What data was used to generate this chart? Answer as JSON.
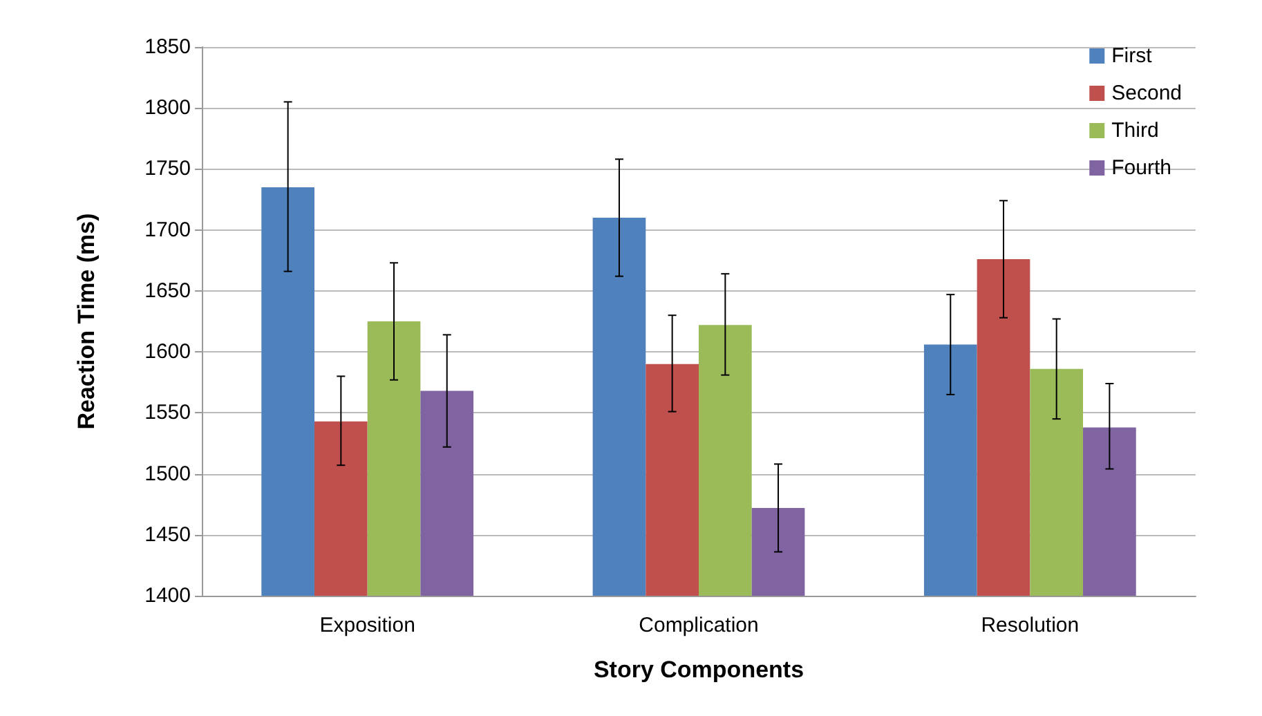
{
  "chart_data": {
    "type": "bar",
    "xlabel": "Story Components",
    "ylabel": "Reaction Time (ms)",
    "categories": [
      "Exposition",
      "Complication",
      "Resolution"
    ],
    "series": [
      {
        "name": "First",
        "color": "#4f81bd",
        "values": [
          1735,
          1710,
          1606
        ],
        "errors": [
          [
            1666,
            1805
          ],
          [
            1662,
            1758
          ],
          [
            1565,
            1647
          ]
        ]
      },
      {
        "name": "Second",
        "color": "#c0504d",
        "values": [
          1543,
          1590,
          1676
        ],
        "errors": [
          [
            1507,
            1580
          ],
          [
            1551,
            1630
          ],
          [
            1628,
            1724
          ]
        ]
      },
      {
        "name": "Third",
        "color": "#9bbb59",
        "values": [
          1625,
          1622,
          1586
        ],
        "errors": [
          [
            1577,
            1673
          ],
          [
            1581,
            1664
          ],
          [
            1545,
            1627
          ]
        ]
      },
      {
        "name": "Fourth",
        "color": "#8064a2",
        "values": [
          1568,
          1472,
          1538
        ],
        "errors": [
          [
            1522,
            1614
          ],
          [
            1436,
            1508
          ],
          [
            1504,
            1574
          ]
        ]
      }
    ],
    "ylim": [
      1400,
      1850
    ],
    "yticks": [
      1400,
      1450,
      1500,
      1550,
      1600,
      1650,
      1700,
      1750,
      1800,
      1850
    ],
    "grid": "y",
    "legend": "top right"
  }
}
